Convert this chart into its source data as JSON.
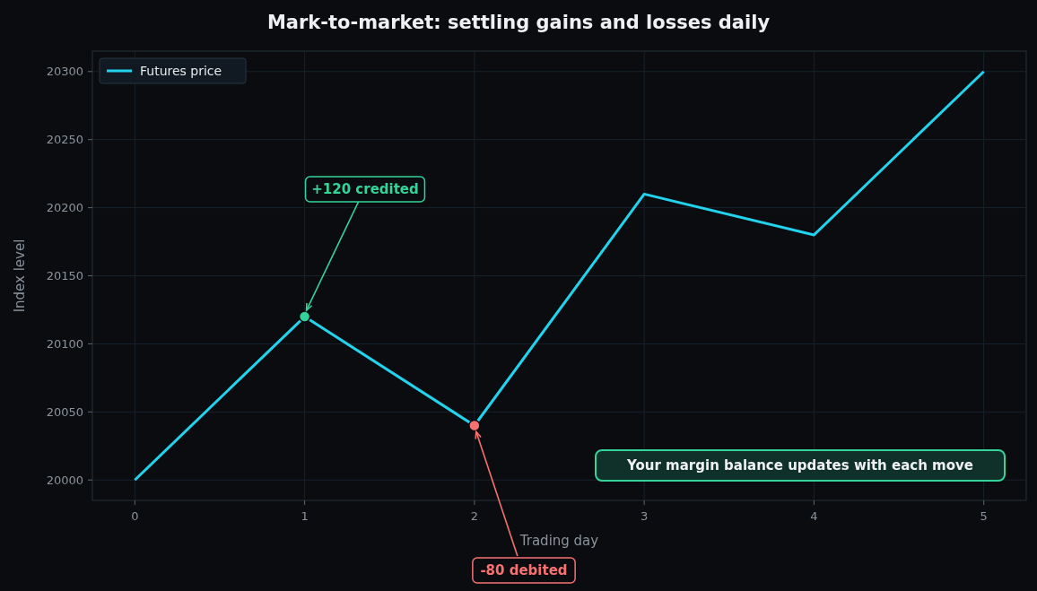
{
  "chart_data": {
    "type": "line",
    "title": "Mark-to-market: settling gains and losses daily",
    "xlabel": "Trading day",
    "ylabel": "Index level",
    "x": [
      0,
      1,
      2,
      3,
      4,
      5
    ],
    "series": [
      {
        "name": "Futures price",
        "color": "#22d3ee",
        "marker": "none",
        "values": [
          20000,
          20120,
          20040,
          20210,
          20180,
          20300
        ]
      },
      {
        "type": "scatter",
        "marker": "circle",
        "x": [
          1,
          2
        ],
        "colors": [
          "#34d399",
          "#f87171"
        ],
        "values": [
          20120,
          20040
        ]
      }
    ],
    "xlim": [
      -0.25,
      5.25
    ],
    "xticks": [
      0,
      1,
      2,
      3,
      4,
      5
    ],
    "ylim": [
      19985,
      20315
    ],
    "yticks": [
      20000,
      20050,
      20100,
      20150,
      20200,
      20250,
      20300
    ],
    "grid": true,
    "legend": "top left",
    "annotations": [
      {
        "text": "+120 credited",
        "x": 1,
        "y": 20120
      },
      {
        "text": "-80 debited",
        "x": 2,
        "y": 20040
      },
      "Your margin balance updates with each move"
    ]
  }
}
